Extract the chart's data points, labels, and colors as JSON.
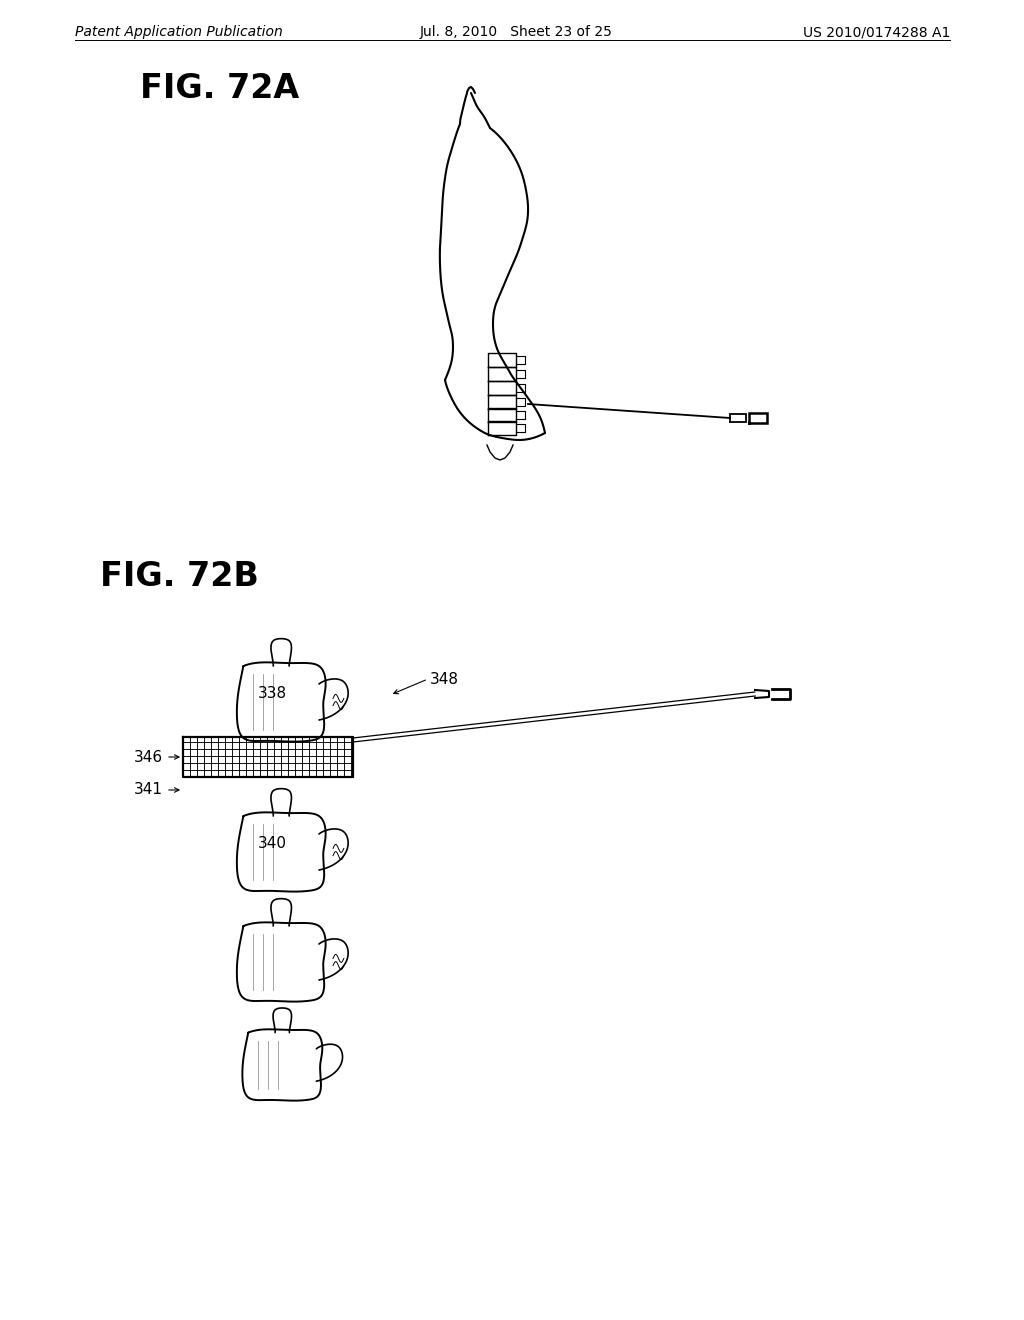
{
  "background_color": "#ffffff",
  "header_left": "Patent Application Publication",
  "header_center": "Jul. 8, 2010   Sheet 23 of 25",
  "header_right": "US 2010/0174288 A1",
  "fig72a_label": "FIG. 72A",
  "fig72b_label": "FIG. 72B",
  "label_338": "338",
  "label_340": "340",
  "label_341": "341",
  "label_346": "346",
  "label_348": "348",
  "line_color": "#000000",
  "header_fontsize": 10,
  "fig_label_fontsize": 24,
  "annotation_fontsize": 11
}
